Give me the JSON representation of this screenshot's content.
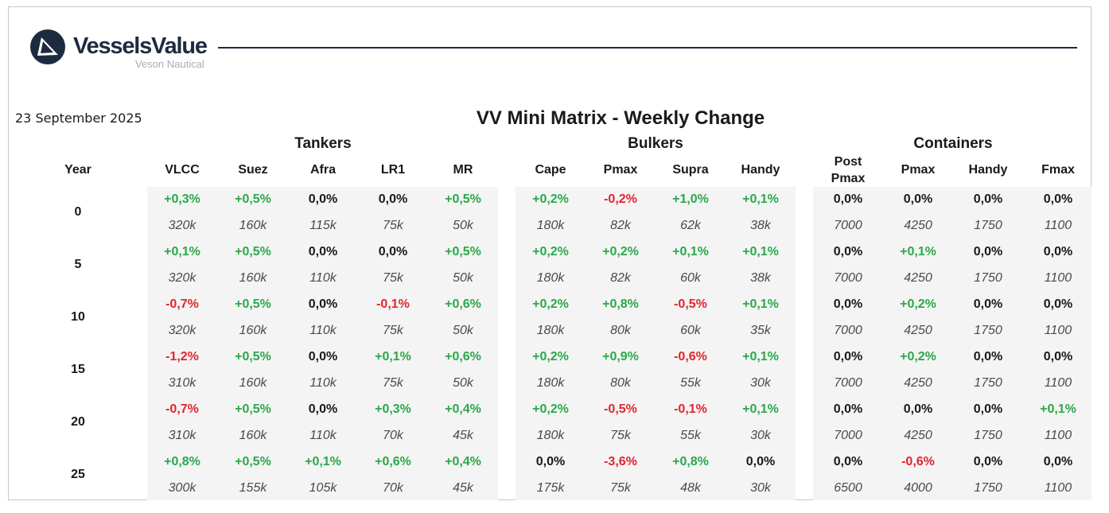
{
  "brand": {
    "name": "VesselsValue",
    "subname": "Veson Nautical",
    "color": "#1c2b40"
  },
  "date": "23 September 2025",
  "title": "VV Mini Matrix - Weekly Change",
  "year_header": "Year",
  "colors": {
    "positive": "#2ba84a",
    "negative": "#e0262c",
    "neutral": "#1a1a1a",
    "panel": "#f4f4f4"
  },
  "groups": [
    {
      "name": "Tankers",
      "columns": [
        {
          "label": "VLCC"
        },
        {
          "label": "Suez"
        },
        {
          "label": "Afra"
        },
        {
          "label": "LR1"
        },
        {
          "label": "MR"
        }
      ]
    },
    {
      "name": "Bulkers",
      "columns": [
        {
          "label": "Cape"
        },
        {
          "label": "Pmax"
        },
        {
          "label": "Supra"
        },
        {
          "label": "Handy"
        }
      ]
    },
    {
      "name": "Containers",
      "columns": [
        {
          "label": "Post\nPmax"
        },
        {
          "label": "Pmax"
        },
        {
          "label": "Handy"
        },
        {
          "label": "Fmax"
        }
      ]
    }
  ],
  "rows": [
    {
      "year": "0",
      "changes": [
        "+0,3%",
        "+0,5%",
        "0,0%",
        "0,0%",
        "+0,5%",
        "+0,2%",
        "-0,2%",
        "+1,0%",
        "+0,1%",
        "0,0%",
        "0,0%",
        "0,0%",
        "0,0%"
      ],
      "sizes": [
        "320k",
        "160k",
        "115k",
        "75k",
        "50k",
        "180k",
        "82k",
        "62k",
        "38k",
        "7000",
        "4250",
        "1750",
        "1100"
      ]
    },
    {
      "year": "5",
      "changes": [
        "+0,1%",
        "+0,5%",
        "0,0%",
        "0,0%",
        "+0,5%",
        "+0,2%",
        "+0,2%",
        "+0,1%",
        "+0,1%",
        "0,0%",
        "+0,1%",
        "0,0%",
        "0,0%"
      ],
      "sizes": [
        "320k",
        "160k",
        "110k",
        "75k",
        "50k",
        "180k",
        "82k",
        "60k",
        "38k",
        "7000",
        "4250",
        "1750",
        "1100"
      ]
    },
    {
      "year": "10",
      "changes": [
        "-0,7%",
        "+0,5%",
        "0,0%",
        "-0,1%",
        "+0,6%",
        "+0,2%",
        "+0,8%",
        "-0,5%",
        "+0,1%",
        "0,0%",
        "+0,2%",
        "0,0%",
        "0,0%"
      ],
      "sizes": [
        "320k",
        "160k",
        "110k",
        "75k",
        "50k",
        "180k",
        "80k",
        "60k",
        "35k",
        "7000",
        "4250",
        "1750",
        "1100"
      ]
    },
    {
      "year": "15",
      "changes": [
        "-1,2%",
        "+0,5%",
        "0,0%",
        "+0,1%",
        "+0,6%",
        "+0,2%",
        "+0,9%",
        "-0,6%",
        "+0,1%",
        "0,0%",
        "+0,2%",
        "0,0%",
        "0,0%"
      ],
      "sizes": [
        "310k",
        "160k",
        "110k",
        "75k",
        "50k",
        "180k",
        "80k",
        "55k",
        "30k",
        "7000",
        "4250",
        "1750",
        "1100"
      ]
    },
    {
      "year": "20",
      "changes": [
        "-0,7%",
        "+0,5%",
        "0,0%",
        "+0,3%",
        "+0,4%",
        "+0,2%",
        "-0,5%",
        "-0,1%",
        "+0,1%",
        "0,0%",
        "0,0%",
        "0,0%",
        "+0,1%"
      ],
      "sizes": [
        "310k",
        "160k",
        "110k",
        "70k",
        "45k",
        "180k",
        "75k",
        "55k",
        "30k",
        "7000",
        "4250",
        "1750",
        "1100"
      ]
    },
    {
      "year": "25",
      "changes": [
        "+0,8%",
        "+0,5%",
        "+0,1%",
        "+0,6%",
        "+0,4%",
        "0,0%",
        "-3,6%",
        "+0,8%",
        "0,0%",
        "0,0%",
        "-0,6%",
        "0,0%",
        "0,0%"
      ],
      "sizes": [
        "300k",
        "155k",
        "105k",
        "70k",
        "45k",
        "175k",
        "75k",
        "48k",
        "30k",
        "6500",
        "4000",
        "1750",
        "1100"
      ]
    }
  ]
}
